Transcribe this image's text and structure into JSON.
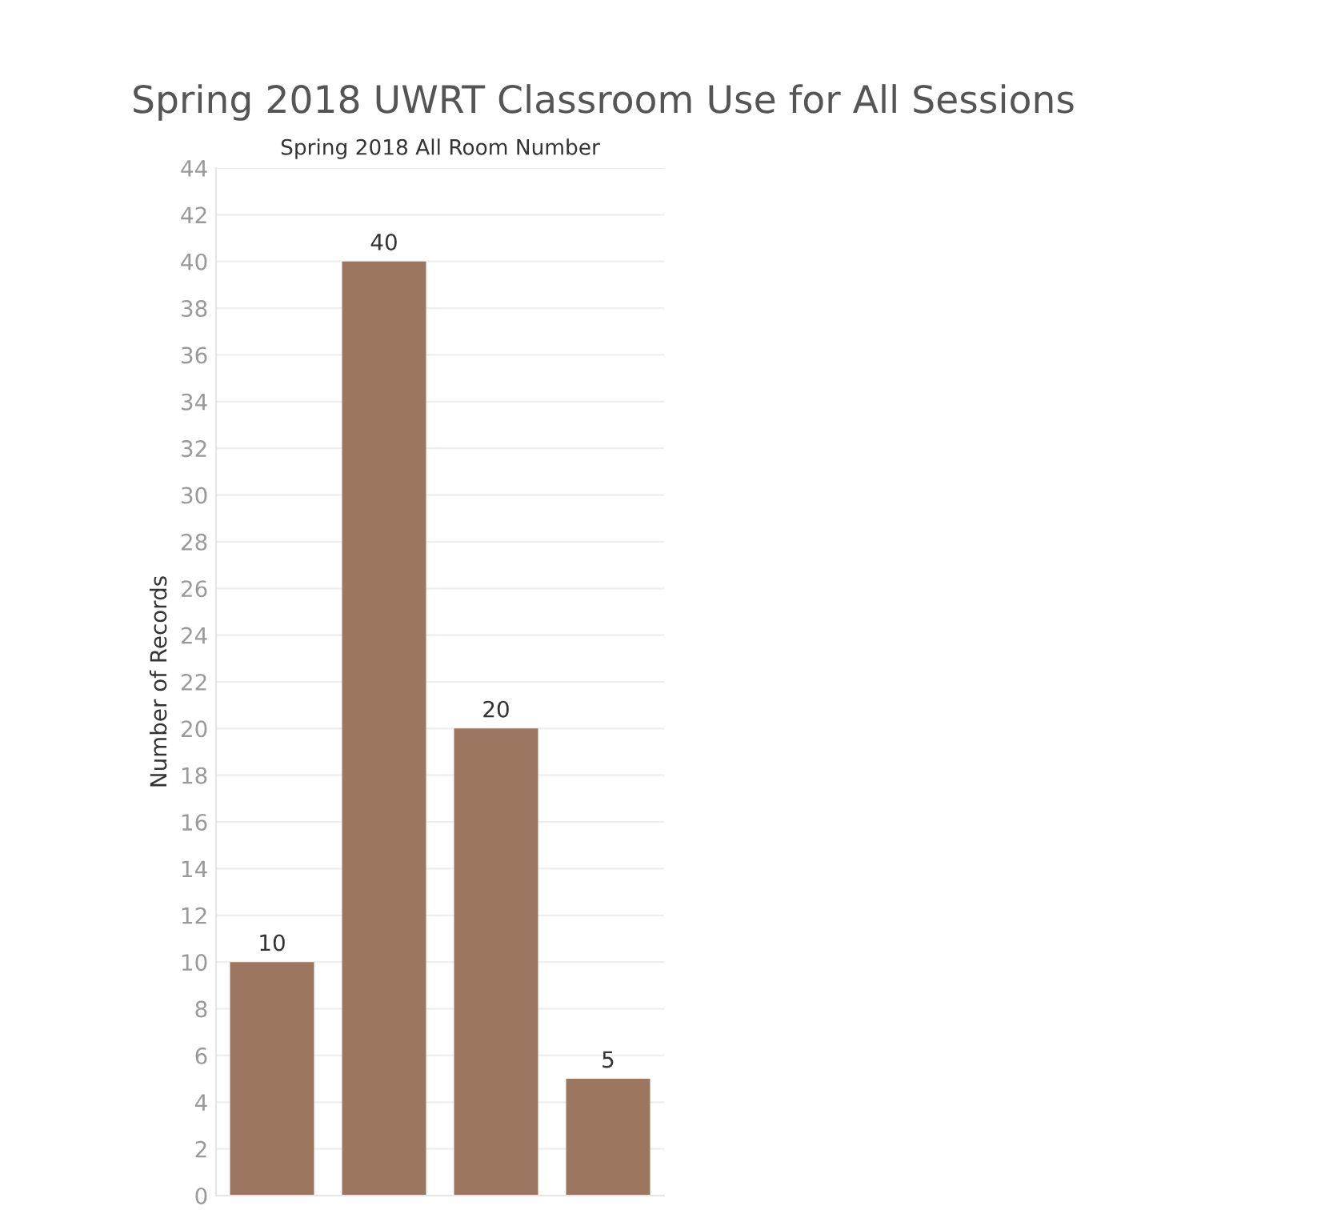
{
  "chart_data": {
    "type": "bar",
    "title": "Spring 2018 UWRT Classroom Use for All Sessions",
    "subtitle": "Spring 2018 All Room Number",
    "ylabel": "Number of Records",
    "categories": [
      null,
      null,
      null,
      null
    ],
    "values": [
      10,
      40,
      20,
      5
    ],
    "color": "#9c765e",
    "ylim": [
      0,
      44
    ],
    "yticks": [
      0,
      2,
      4,
      6,
      8,
      10,
      12,
      14,
      16,
      18,
      20,
      22,
      24,
      26,
      28,
      30,
      32,
      34,
      36,
      38,
      40,
      42,
      44
    ],
    "grid": "y",
    "data_labels": true
  }
}
